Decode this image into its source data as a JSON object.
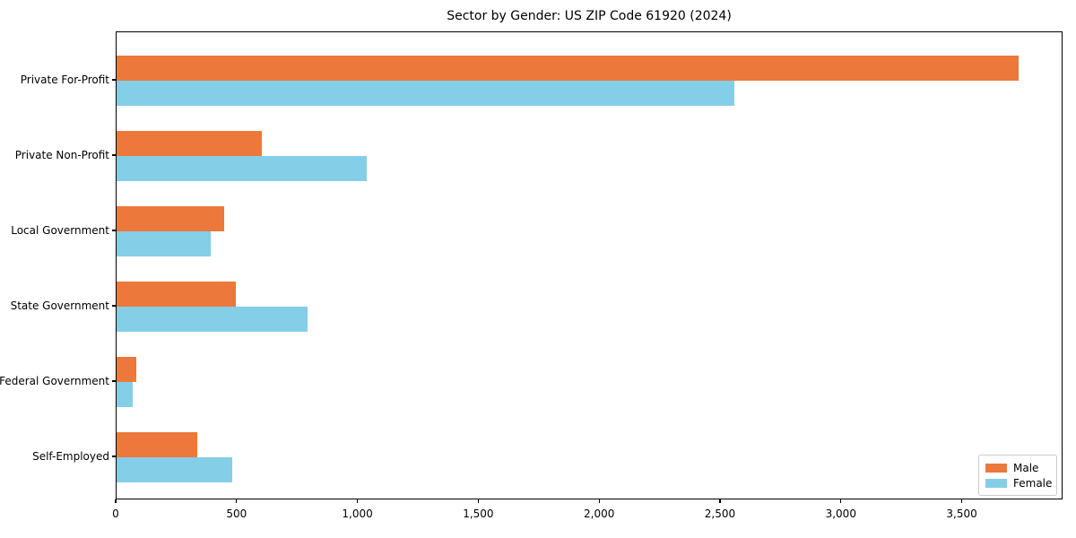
{
  "chart_data": {
    "type": "bar",
    "orientation": "horizontal",
    "title": "Sector by Gender: US ZIP Code 61920 (2024)",
    "categories": [
      "Private For-Profit",
      "Private Non-Profit",
      "Local Government",
      "State Government",
      "Federal Government",
      "Self-Employed"
    ],
    "series": [
      {
        "name": "Male",
        "color": "#EC793B",
        "values": [
          3730,
          600,
          445,
          495,
          80,
          335
        ]
      },
      {
        "name": "Female",
        "color": "#85CEE8",
        "values": [
          2555,
          1035,
          390,
          790,
          65,
          480
        ]
      }
    ],
    "xlabel": "",
    "ylabel": "",
    "xlim": [
      0,
      3917
    ],
    "xticks": [
      0,
      500,
      1000,
      1500,
      2000,
      2500,
      3000,
      3500
    ],
    "xtick_labels": [
      "0",
      "500",
      "1,000",
      "1,500",
      "2,000",
      "2,500",
      "3,000",
      "3,500"
    ],
    "legend": {
      "position": "lower-right",
      "entries": [
        "Male",
        "Female"
      ]
    },
    "grid": false,
    "frame": true
  }
}
